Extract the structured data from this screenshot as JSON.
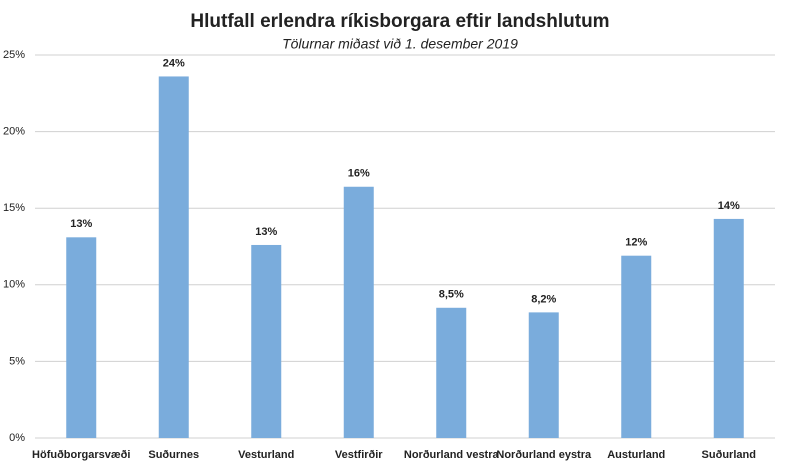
{
  "chart_data": {
    "type": "bar",
    "title": "Hlutfall erlendra ríkisborgara eftir landshlutum",
    "subtitle": "Tölurnar miðast við 1. desember 2019",
    "categories": [
      "Höfuðborgarsvæði",
      "Suðurnes",
      "Vesturland",
      "Vestfirðir",
      "Norðurland vestra",
      "Norðurland eystra",
      "Austurland",
      "Suðurland"
    ],
    "values": [
      13.1,
      23.6,
      12.6,
      16.4,
      8.5,
      8.2,
      11.9,
      14.3
    ],
    "value_labels": [
      "13%",
      "24%",
      "13%",
      "16%",
      "8,5%",
      "8,2%",
      "12%",
      "14%"
    ],
    "color": "#7aacdc",
    "ylim": [
      0,
      25
    ],
    "yticks": [
      {
        "value": 0,
        "label": "0%"
      },
      {
        "value": 5,
        "label": "5%"
      },
      {
        "value": 10,
        "label": "10%"
      },
      {
        "value": 15,
        "label": "15%"
      },
      {
        "value": 20,
        "label": "20%"
      },
      {
        "value": 25,
        "label": "25%"
      }
    ],
    "grid": true
  }
}
